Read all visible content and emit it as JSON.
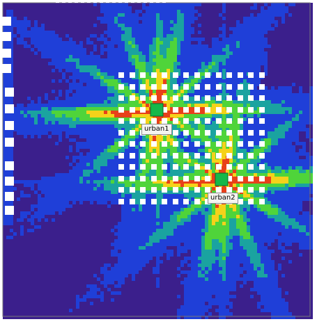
{
  "map": {
    "palette": {
      "outside": "#ffffff",
      "low": "#3b1f8c",
      "mid_low": "#1f3fd8",
      "mid": "#1aa3a0",
      "mid_high": "#4fd43a",
      "high": "#f5d21a",
      "peak": "#e8401a",
      "marker": "#16b84a",
      "building": "#ffffff"
    }
  },
  "nodes": [
    {
      "id": "urban1",
      "label": "urban1",
      "icon": "green-square-marker"
    },
    {
      "id": "urban2",
      "label": "urban2",
      "icon": "green-square-marker"
    }
  ]
}
